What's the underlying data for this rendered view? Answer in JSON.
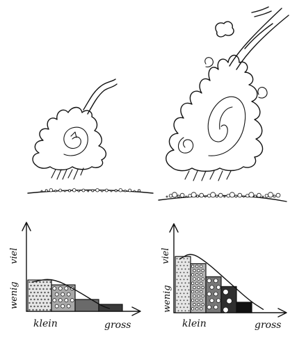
{
  "illustrations": {
    "small_eruption": {
      "features": [
        "cloud",
        "spiral-vortex",
        "debris-stream",
        "ground"
      ]
    },
    "large_eruption": {
      "features": [
        "cloud",
        "spiral-vortex",
        "small-vortices",
        "debris-stream",
        "ground"
      ]
    }
  },
  "chart_data": [
    {
      "type": "bar",
      "xlabel_left": "klein",
      "xlabel_right": "gross",
      "ylabel_top": "viel",
      "ylabel_bottom": "wenig",
      "categories": [
        "1",
        "2",
        "3",
        "4"
      ],
      "values": [
        0.45,
        0.38,
        0.17,
        0.1
      ],
      "ylim": [
        0,
        1
      ],
      "fills": [
        "#e6e6e6",
        "#a8a8a8",
        "#6a6a6a",
        "#3a3a3a"
      ],
      "grain_sizes": [
        1.2,
        2.5,
        0,
        0
      ],
      "curve": [
        [
          0.05,
          0.42
        ],
        [
          0.3,
          0.48
        ],
        [
          0.6,
          0.3
        ],
        [
          0.9,
          0.08
        ],
        [
          1.0,
          0.04
        ]
      ]
    },
    {
      "type": "bar",
      "xlabel_left": "klein",
      "xlabel_right": "gross",
      "ylabel_top": "viel",
      "ylabel_bottom": "wenig",
      "categories": [
        "1",
        "2",
        "3",
        "4",
        "5"
      ],
      "values": [
        0.86,
        0.75,
        0.55,
        0.4,
        0.16
      ],
      "ylim": [
        0,
        1
      ],
      "fills": [
        "#e6e6e6",
        "#b4b4b4",
        "#777777",
        "#2f2f2f",
        "#111111"
      ],
      "grain_sizes": [
        1.0,
        1.8,
        2.8,
        3.8,
        5.0
      ],
      "curve": [
        [
          0.05,
          0.82
        ],
        [
          0.18,
          0.92
        ],
        [
          0.35,
          0.78
        ],
        [
          0.6,
          0.48
        ],
        [
          0.85,
          0.18
        ],
        [
          1.0,
          0.05
        ]
      ]
    }
  ]
}
